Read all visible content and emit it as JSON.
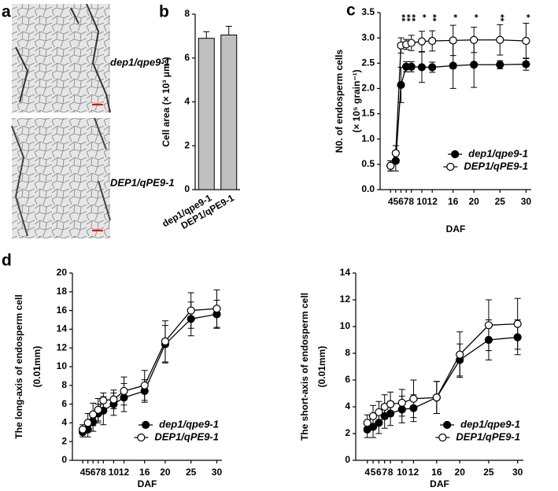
{
  "figure": {
    "panel": "a",
    "captions": [
      "dep1/qpe9-1",
      "DEP1/qPE9-1"
    ]
  },
  "chart_data": [
    {
      "type": "bar",
      "panel": "b",
      "ylabel": [
        "Cell area (× 10³ μm²)"
      ],
      "categories": [
        "dep1/qpe9-1",
        "DEP1/qPE9-1"
      ],
      "values": [
        6.9,
        7.05
      ],
      "errors": [
        0.3,
        0.4
      ],
      "color": "#c0c0c0",
      "ylim": [
        0,
        8
      ],
      "yticks": [
        0,
        2,
        4,
        6,
        8
      ]
    },
    {
      "type": "line",
      "panel": "c",
      "ylabel": [
        "N0. of  endosperm cells",
        "(× 10⁵ grain⁻¹)"
      ],
      "xlabel": "DAF",
      "x": [
        4,
        5,
        6,
        7,
        8,
        10,
        12,
        16,
        20,
        25,
        30
      ],
      "xlim": [
        2,
        31
      ],
      "xticks": [
        4,
        5,
        6,
        7,
        8,
        10,
        12,
        16,
        20,
        25,
        30
      ],
      "ylim": [
        0,
        3.5
      ],
      "yticks": [
        {
          "value": 0,
          "label": "0.0"
        },
        0.5,
        {
          "value": 1,
          "label": "1.0"
        },
        1.5,
        {
          "value": 2,
          "label": "2.0"
        },
        2.5,
        {
          "value": 3,
          "label": "3.0"
        },
        3.5
      ],
      "legend": "lower right",
      "series": [
        {
          "name": "dep1/qpe9-1",
          "color": "#000000",
          "values": [
            0.47,
            0.57,
            2.07,
            2.43,
            2.43,
            2.42,
            2.42,
            2.45,
            2.47,
            2.47,
            2.48
          ],
          "errors": [
            0.1,
            0.2,
            0.35,
            0.1,
            0.1,
            0.3,
            0.1,
            0.45,
            0.45,
            0.08,
            0.12
          ]
        },
        {
          "name": "DEP1/qPE9-1",
          "color": "#ffffff",
          "values": [
            0.47,
            0.72,
            2.85,
            2.87,
            2.9,
            2.93,
            2.94,
            2.95,
            2.96,
            2.96,
            2.94
          ],
          "errors": [
            0.1,
            0.15,
            0.15,
            0.1,
            0.15,
            0.2,
            0.2,
            0.3,
            0.25,
            0.3,
            0.35
          ]
        }
      ],
      "annotations": [
        {
          "x": 6,
          "text": "**"
        },
        {
          "x": 7,
          "text": "**"
        },
        {
          "x": 8,
          "text": "**"
        },
        {
          "x": 10,
          "text": "*"
        },
        {
          "x": 12,
          "text": "**"
        },
        {
          "x": 16,
          "text": "*"
        },
        {
          "x": 20,
          "text": "*"
        },
        {
          "x": 25,
          "text": "**"
        },
        {
          "x": 30,
          "text": "*"
        }
      ]
    },
    {
      "type": "line",
      "panel": "d",
      "ylabel": [
        "The  long-axis of endosperm cell",
        "(0.01mm)"
      ],
      "xlabel": "DAF",
      "x": [
        4,
        5,
        6,
        7,
        8,
        10,
        12,
        16,
        20,
        25,
        30
      ],
      "xlim": [
        2,
        31
      ],
      "xticks": [
        4,
        5,
        6,
        7,
        8,
        10,
        12,
        16,
        20,
        25,
        30
      ],
      "ylim": [
        0,
        20
      ],
      "yticks": [
        0,
        2,
        4,
        6,
        8,
        10,
        12,
        14,
        16,
        18,
        20
      ],
      "legend": "lower right",
      "series": [
        {
          "name": "dep1/qpe9-1",
          "color": "#000000",
          "values": [
            3.0,
            3.3,
            4.1,
            5.0,
            5.3,
            6.0,
            6.7,
            7.4,
            12.4,
            15.1,
            15.6
          ],
          "errors": [
            0.5,
            0.8,
            1.0,
            1.0,
            1.5,
            1.2,
            1.5,
            1.2,
            2.0,
            1.8,
            1.5
          ]
        },
        {
          "name": "DEP1/qPE9-1",
          "color": "#ffffff",
          "values": [
            3.3,
            4.0,
            4.9,
            5.4,
            6.4,
            6.5,
            7.4,
            8.0,
            12.7,
            16.0,
            16.2
          ],
          "errors": [
            0.5,
            1.0,
            1.2,
            1.2,
            0.8,
            1.0,
            1.5,
            1.6,
            2.2,
            1.9,
            2.0
          ]
        }
      ]
    },
    {
      "type": "line",
      "ylabel": [
        "The short-axis of endosperm cell",
        "(0.01mm)"
      ],
      "xlabel": "DAF",
      "x": [
        4,
        5,
        6,
        7,
        8,
        10,
        12,
        16,
        20,
        25,
        30
      ],
      "xlim": [
        2,
        31
      ],
      "xticks": [
        4,
        5,
        6,
        7,
        8,
        10,
        12,
        16,
        20,
        25,
        30
      ],
      "ylim": [
        0,
        14
      ],
      "yticks": [
        0,
        2,
        4,
        6,
        8,
        10,
        12,
        14
      ],
      "legend": "lower right",
      "series": [
        {
          "name": "dep1/qpe9-1",
          "color": "#000000",
          "values": [
            2.3,
            2.5,
            2.8,
            3.3,
            3.5,
            3.8,
            3.9,
            4.7,
            7.5,
            9.0,
            9.2
          ],
          "errors": [
            0.6,
            0.8,
            0.8,
            0.9,
            0.9,
            1.0,
            1.0,
            1.2,
            1.2,
            1.5,
            1.3
          ]
        },
        {
          "name": "DEP1/qPE9-1",
          "color": "#ffffff",
          "values": [
            2.8,
            3.3,
            3.6,
            4.0,
            4.2,
            4.3,
            4.6,
            4.7,
            7.9,
            10.1,
            10.2
          ],
          "errors": [
            0.6,
            0.8,
            0.8,
            0.9,
            0.9,
            1.0,
            1.4,
            1.2,
            1.7,
            1.9,
            1.9
          ]
        }
      ]
    }
  ]
}
